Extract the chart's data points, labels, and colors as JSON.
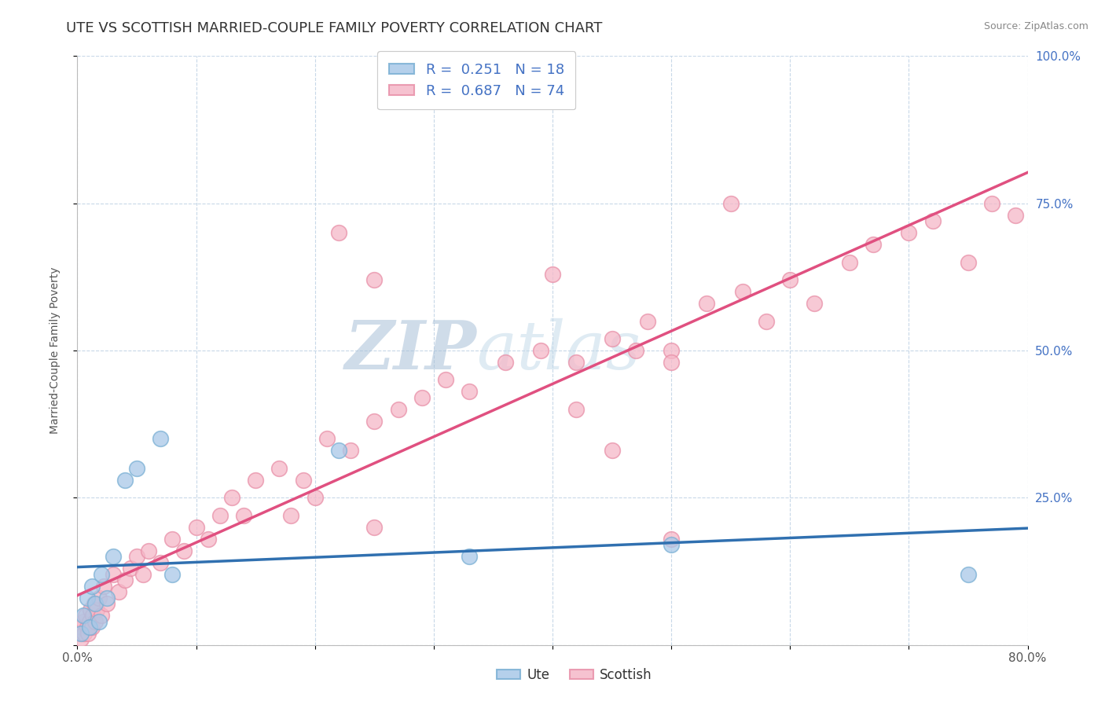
{
  "title": "UTE VS SCOTTISH MARRIED-COUPLE FAMILY POVERTY CORRELATION CHART",
  "source_text": "Source: ZipAtlas.com",
  "ylabel": "Married-Couple Family Poverty",
  "xlim": [
    0.0,
    80.0
  ],
  "ylim": [
    0.0,
    100.0
  ],
  "xticks": [
    0.0,
    10.0,
    20.0,
    30.0,
    40.0,
    50.0,
    60.0,
    70.0,
    80.0
  ],
  "yticks": [
    0.0,
    25.0,
    50.0,
    75.0,
    100.0
  ],
  "xtick_labels_show": [
    "0.0%",
    "80.0%"
  ],
  "ytick_labels": [
    "",
    "25.0%",
    "50.0%",
    "75.0%",
    "100.0%"
  ],
  "legend_ute_r": "0.251",
  "legend_ute_n": "18",
  "legend_scottish_r": "0.687",
  "legend_scottish_n": "74",
  "ute_color": "#a8c8e8",
  "ute_edge_color": "#7ab0d4",
  "scottish_color": "#f5b8c8",
  "scottish_edge_color": "#e890a8",
  "ute_line_color": "#3070b0",
  "scottish_line_color": "#e05080",
  "background_color": "#ffffff",
  "grid_color": "#c8d8e8",
  "watermark_zip_color": "#b8cce0",
  "watermark_atlas_color": "#c8dce8",
  "title_fontsize": 13,
  "axis_label_fontsize": 10,
  "tick_fontsize": 11,
  "legend_fontsize": 13,
  "ute_x": [
    0.3,
    0.5,
    0.8,
    1.0,
    1.2,
    1.5,
    1.8,
    2.0,
    2.5,
    3.0,
    4.0,
    5.0,
    7.0,
    8.0,
    22.0,
    33.0,
    50.0,
    75.0
  ],
  "ute_y": [
    2.0,
    5.0,
    8.0,
    3.0,
    10.0,
    7.0,
    4.0,
    12.0,
    8.0,
    15.0,
    28.0,
    30.0,
    35.0,
    12.0,
    33.0,
    15.0,
    17.0,
    12.0
  ],
  "scottish_x": [
    0.2,
    0.3,
    0.4,
    0.5,
    0.6,
    0.7,
    0.8,
    0.9,
    1.0,
    1.1,
    1.2,
    1.3,
    1.4,
    1.5,
    1.6,
    1.8,
    2.0,
    2.2,
    2.5,
    3.0,
    3.5,
    4.0,
    4.5,
    5.0,
    5.5,
    6.0,
    7.0,
    8.0,
    9.0,
    10.0,
    11.0,
    12.0,
    13.0,
    14.0,
    15.0,
    17.0,
    19.0,
    21.0,
    23.0,
    25.0,
    27.0,
    29.0,
    31.0,
    33.0,
    36.0,
    39.0,
    42.0,
    45.0,
    48.0,
    50.0,
    53.0,
    56.0,
    58.0,
    60.0,
    62.0,
    65.0,
    67.0,
    70.0,
    72.0,
    75.0,
    77.0,
    79.0,
    40.0,
    55.0,
    50.0,
    22.0,
    25.0,
    42.0,
    47.0,
    18.0,
    20.0,
    45.0,
    50.0,
    25.0
  ],
  "scottish_y": [
    2.0,
    1.0,
    3.0,
    4.0,
    2.0,
    5.0,
    3.0,
    2.0,
    4.0,
    6.0,
    3.0,
    5.0,
    7.0,
    4.0,
    6.0,
    8.0,
    5.0,
    10.0,
    7.0,
    12.0,
    9.0,
    11.0,
    13.0,
    15.0,
    12.0,
    16.0,
    14.0,
    18.0,
    16.0,
    20.0,
    18.0,
    22.0,
    25.0,
    22.0,
    28.0,
    30.0,
    28.0,
    35.0,
    33.0,
    38.0,
    40.0,
    42.0,
    45.0,
    43.0,
    48.0,
    50.0,
    48.0,
    52.0,
    55.0,
    50.0,
    58.0,
    60.0,
    55.0,
    62.0,
    58.0,
    65.0,
    68.0,
    70.0,
    72.0,
    65.0,
    75.0,
    73.0,
    63.0,
    75.0,
    48.0,
    70.0,
    62.0,
    40.0,
    50.0,
    22.0,
    25.0,
    33.0,
    18.0,
    20.0
  ]
}
